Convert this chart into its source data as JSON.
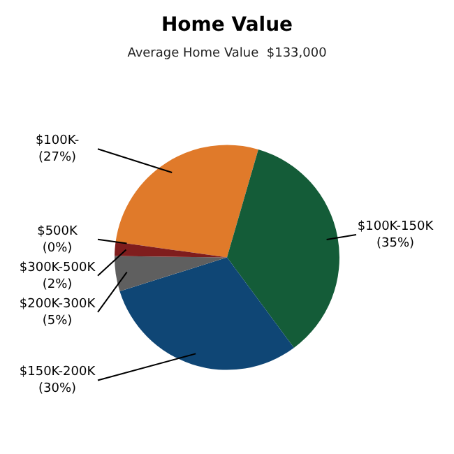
{
  "chart_data": {
    "type": "pie",
    "title": "Home Value",
    "subtitle": "Average Home Value  $133,000",
    "categories": [
      "$100K-",
      "$100K-150K",
      "$150K-200K",
      "$200K-300K",
      "$300K-500K",
      "$500K"
    ],
    "values": [
      27,
      35,
      30,
      5,
      2,
      0
    ],
    "value_labels": [
      "(27%)",
      "(35%)",
      "(30%)",
      "(5%)",
      "(2%)",
      "(0%)"
    ],
    "colors": [
      "#e07a2a",
      "#145c38",
      "#0f4675",
      "#5f5f5f",
      "#7f1d1d",
      "#5a0f10"
    ],
    "legend": false
  }
}
